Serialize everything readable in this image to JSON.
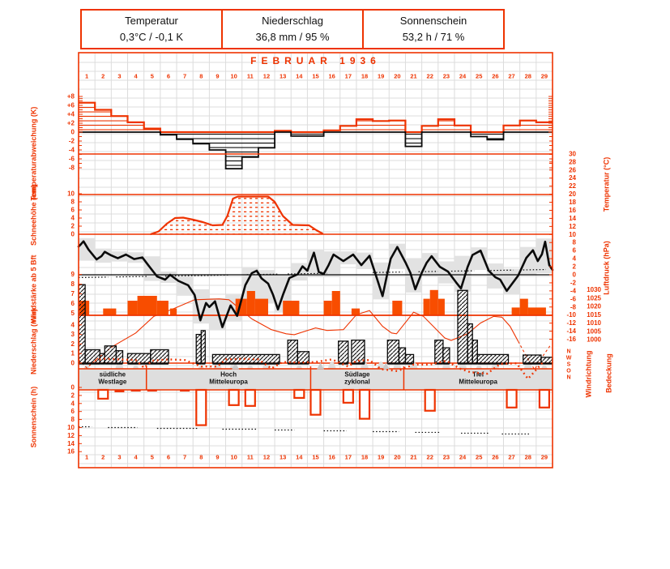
{
  "header": {
    "cells": [
      {
        "title": "Temperatur",
        "value": "0,3°C / -0,1 K"
      },
      {
        "title": "Niederschlag",
        "value": "36,8 mm / 95 %"
      },
      {
        "title": "Sonnenschein",
        "value": "53,2 h / 71 %"
      }
    ]
  },
  "title": "FEBRUAR  1936",
  "days": [
    "1",
    "2",
    "3",
    "4",
    "5",
    "6",
    "7",
    "8",
    "9",
    "10",
    "11",
    "12",
    "13",
    "14",
    "15",
    "16",
    "17",
    "18",
    "19",
    "20",
    "21",
    "22",
    "23",
    "24",
    "25",
    "26",
    "27",
    "28",
    "29"
  ],
  "labels": {
    "left": [
      "Temperaturabweichung (K)",
      "Schneehöhe (cm)",
      "Windstärke ab 5 Bft",
      "Niederschlag (mm)",
      "Sonnenschein (h)"
    ],
    "right": [
      "Temperatur (°C)",
      "Luftdruck (hPa)",
      "Windrichtung",
      "Bedeckung"
    ]
  },
  "ticks": {
    "deviation": [
      "+8",
      "+6",
      "+4",
      "+2",
      "0",
      "-2",
      "-4",
      "-6",
      "-8"
    ],
    "snow": [
      "10",
      "8",
      "6",
      "4",
      "2",
      "0"
    ],
    "wind": [
      "9",
      "8",
      "7",
      "6",
      "5"
    ],
    "precip": [
      "4",
      "3",
      "2",
      "1",
      "0"
    ],
    "sun": [
      "0",
      "2",
      "4",
      "6",
      "8",
      "10",
      "12",
      "14",
      "16"
    ],
    "temp": [
      "30",
      "28",
      "26",
      "24",
      "22",
      "20",
      "18",
      "16",
      "14",
      "12",
      "10",
      "8",
      "6",
      "4",
      "2",
      "0",
      "-2",
      "-4",
      "-6",
      "-8",
      "-10",
      "-12",
      "-14",
      "-16"
    ],
    "pressure": [
      "1030",
      "1025",
      "1020",
      "1015",
      "1010",
      "1005",
      "1000"
    ],
    "wdir": [
      "N",
      "W",
      "S",
      "O",
      "N"
    ]
  },
  "colors": {
    "accent": "#ee3300",
    "solid_bar": "#f84d00",
    "grid": "#dcdcdc",
    "range_gray": "#e2e2e2",
    "band_gray": "#dedede",
    "black": "#0a0a0a"
  },
  "chart_data": {
    "type": [
      "bar",
      "area",
      "line"
    ],
    "title": "FEBRUAR 1936",
    "temperature_deviation_k": {
      "type": "bar",
      "unit": "K",
      "ylim": [
        -8,
        8
      ],
      "daily": [
        6.6,
        5.0,
        3.6,
        2.2,
        0.8,
        -0.6,
        -1.6,
        -2.6,
        -4.0,
        -8.2,
        -5.6,
        -3.5,
        0.3,
        -0.9,
        -0.9,
        0.4,
        1.4,
        2.9,
        2.5,
        2.6,
        -3.2,
        1.4,
        2.9,
        1.5,
        -1.0,
        -1.7,
        1.5,
        2.6,
        2.2
      ]
    },
    "snow_depth_cm": {
      "type": "area",
      "unit": "cm",
      "ylim": [
        0,
        10
      ],
      "points": [
        [
          5.4,
          0
        ],
        [
          5.9,
          0.7
        ],
        [
          6.4,
          2.6
        ],
        [
          6.9,
          4.0
        ],
        [
          7.4,
          4.1
        ],
        [
          8.0,
          3.6
        ],
        [
          8.6,
          3.0
        ],
        [
          9.2,
          2.2
        ],
        [
          9.8,
          2.3
        ],
        [
          10.1,
          4.5
        ],
        [
          10.45,
          8.8
        ],
        [
          10.75,
          9.3
        ],
        [
          12.6,
          9.3
        ],
        [
          13.0,
          8.0
        ],
        [
          13.5,
          4.5
        ],
        [
          14.1,
          2.3
        ],
        [
          15.1,
          2.2
        ],
        [
          15.55,
          1.0
        ],
        [
          15.95,
          0.1
        ]
      ]
    },
    "temperature_c": {
      "type": "line",
      "unit": "°C",
      "ylim": [
        -16,
        30
      ],
      "points": [
        [
          1.0,
          7.0
        ],
        [
          1.15,
          7.6
        ],
        [
          1.3,
          8.3
        ],
        [
          1.6,
          6.3
        ],
        [
          2.1,
          3.8
        ],
        [
          2.4,
          4.6
        ],
        [
          2.6,
          5.7
        ],
        [
          3.0,
          4.8
        ],
        [
          3.4,
          4.1
        ],
        [
          3.9,
          5.0
        ],
        [
          4.4,
          3.9
        ],
        [
          4.9,
          4.3
        ],
        [
          5.3,
          2.2
        ],
        [
          5.8,
          -0.4
        ],
        [
          6.3,
          -1.2
        ],
        [
          6.6,
          0.0
        ],
        [
          7.1,
          -1.5
        ],
        [
          7.7,
          -2.6
        ],
        [
          8.1,
          -5.0
        ],
        [
          8.45,
          -11.3
        ],
        [
          8.8,
          -7.0
        ],
        [
          9.0,
          -8.0
        ],
        [
          9.35,
          -6.6
        ],
        [
          9.8,
          -13.0
        ],
        [
          10.3,
          -7.6
        ],
        [
          10.7,
          -10.2
        ],
        [
          11.2,
          -2.6
        ],
        [
          11.6,
          0.4
        ],
        [
          11.9,
          1.0
        ],
        [
          12.2,
          -0.9
        ],
        [
          12.6,
          -2.2
        ],
        [
          12.9,
          -5.0
        ],
        [
          13.2,
          -8.6
        ],
        [
          13.5,
          -5.0
        ],
        [
          13.9,
          -0.8
        ],
        [
          14.4,
          0.1
        ],
        [
          14.7,
          2.1
        ],
        [
          15.0,
          1.0
        ],
        [
          15.4,
          5.5
        ],
        [
          15.7,
          0.7
        ],
        [
          16.0,
          0.2
        ],
        [
          16.3,
          2.4
        ],
        [
          16.6,
          5.0
        ],
        [
          17.2,
          3.4
        ],
        [
          17.8,
          5.0
        ],
        [
          18.3,
          2.4
        ],
        [
          18.8,
          4.7
        ],
        [
          19.3,
          -1.5
        ],
        [
          19.6,
          -5.3
        ],
        [
          19.9,
          0.5
        ],
        [
          20.1,
          4.0
        ],
        [
          20.5,
          6.9
        ],
        [
          21.0,
          3.1
        ],
        [
          21.3,
          0.5
        ],
        [
          21.6,
          -3.6
        ],
        [
          22.0,
          0.5
        ],
        [
          22.3,
          3.0
        ],
        [
          22.6,
          4.6
        ],
        [
          23.1,
          2.0
        ],
        [
          23.6,
          0.8
        ],
        [
          24.1,
          -1.9
        ],
        [
          24.4,
          -3.4
        ],
        [
          24.8,
          1.9
        ],
        [
          25.1,
          4.9
        ],
        [
          25.6,
          6.0
        ],
        [
          26.1,
          1.0
        ],
        [
          26.5,
          -0.6
        ],
        [
          26.8,
          -1.2
        ],
        [
          27.2,
          -4.0
        ],
        [
          27.9,
          -0.2
        ],
        [
          28.4,
          4.2
        ],
        [
          28.8,
          6.1
        ],
        [
          29.1,
          3.4
        ],
        [
          29.35,
          5.1
        ],
        [
          29.55,
          8.2
        ],
        [
          29.8,
          2.4
        ],
        [
          30.0,
          1.2
        ]
      ]
    },
    "temperature_mean_ref": {
      "type": "dotted-segments",
      "start_value": -0.7,
      "slope_per_day": 0.07,
      "segments": [
        [
          1.0,
          2.8
        ],
        [
          3.3,
          5.2
        ],
        [
          6.3,
          10.2
        ],
        [
          11.3,
          13.2
        ],
        [
          13.8,
          16.2
        ],
        [
          19.0,
          20.8
        ],
        [
          21.8,
          23.0
        ],
        [
          23.8,
          25.2
        ],
        [
          26.0,
          27.6
        ],
        [
          28.2,
          29.6
        ]
      ]
    },
    "pressure_hpa": {
      "type": "line",
      "unit": "hPa",
      "ylim": [
        1000,
        1030
      ],
      "dash_head": [
        [
          1.0,
          988
        ],
        [
          1.5,
          983
        ],
        [
          2.2,
          989
        ],
        [
          3.1,
          996
        ]
      ],
      "solid": [
        [
          3.1,
          996
        ],
        [
          4.5,
          1004
        ],
        [
          5.6,
          1014
        ],
        [
          6.9,
          1019
        ],
        [
          8.1,
          1024
        ],
        [
          9.6,
          1024.5
        ],
        [
          10.2,
          1024
        ],
        [
          11.6,
          1012.5
        ],
        [
          12.8,
          1006
        ],
        [
          13.7,
          1003.5
        ],
        [
          14.2,
          1003
        ],
        [
          15.5,
          1007
        ],
        [
          16.2,
          1005.5
        ],
        [
          17.2,
          1006
        ],
        [
          18.0,
          1015
        ],
        [
          18.8,
          1017.5
        ],
        [
          19.6,
          1008
        ],
        [
          20.15,
          1004
        ],
        [
          20.45,
          1003.5
        ],
        [
          21.5,
          1016.5
        ],
        [
          22.1,
          1014
        ],
        [
          23.4,
          1001
        ],
        [
          23.8,
          999.5
        ],
        [
          24.8,
          1003.5
        ],
        [
          25.6,
          1010
        ],
        [
          26.4,
          1014
        ],
        [
          26.9,
          1013.5
        ],
        [
          27.4,
          1008
        ],
        [
          27.9,
          999
        ]
      ],
      "dash_tail": [
        [
          27.9,
          999
        ],
        [
          28.4,
          990
        ],
        [
          28.9,
          982
        ],
        [
          29.4,
          990
        ],
        [
          29.9,
          997
        ]
      ]
    },
    "wind_bft": {
      "type": "bar",
      "unit": "Bft",
      "segments": [
        [
          1.05,
          1.65,
          6.3
        ],
        [
          2.5,
          3.3,
          5.5
        ],
        [
          4.0,
          4.6,
          6.3
        ],
        [
          4.6,
          5.8,
          6.8
        ],
        [
          5.8,
          6.5,
          6.3
        ],
        [
          6.6,
          7.0,
          5.5
        ],
        [
          10.6,
          11.3,
          6.5
        ],
        [
          11.3,
          11.8,
          7.3
        ],
        [
          11.8,
          12.6,
          6.5
        ],
        [
          13.5,
          14.5,
          6.3
        ],
        [
          16.0,
          16.5,
          6.3
        ],
        [
          16.5,
          17.0,
          7.3
        ],
        [
          17.7,
          18.2,
          5.5
        ],
        [
          20.2,
          20.8,
          6.3
        ],
        [
          22.1,
          22.5,
          6.5
        ],
        [
          22.5,
          23.0,
          7.4
        ],
        [
          23.0,
          23.4,
          6.5
        ],
        [
          27.5,
          28.0,
          5.6
        ],
        [
          28.0,
          28.5,
          6.5
        ],
        [
          28.5,
          29.6,
          5.6
        ]
      ]
    },
    "precipitation_mm": {
      "type": "bar",
      "unit": "mm",
      "segments": [
        [
          1.0,
          1.4,
          8.2
        ],
        [
          1.4,
          2.3,
          1.4
        ],
        [
          2.3,
          2.6,
          1.0
        ],
        [
          2.6,
          3.3,
          1.8
        ],
        [
          3.3,
          3.7,
          1.3
        ],
        [
          4.0,
          5.4,
          1.0
        ],
        [
          5.4,
          6.5,
          1.4
        ],
        [
          8.2,
          8.5,
          3.0
        ],
        [
          8.5,
          8.75,
          3.4
        ],
        [
          9.2,
          13.3,
          0.9
        ],
        [
          13.8,
          14.4,
          2.4
        ],
        [
          14.4,
          15.1,
          1.2
        ],
        [
          16.9,
          17.5,
          2.3
        ],
        [
          17.7,
          18.5,
          2.4
        ],
        [
          19.9,
          20.6,
          2.4
        ],
        [
          20.6,
          21.0,
          1.6
        ],
        [
          21.0,
          21.5,
          0.9
        ],
        [
          22.8,
          23.3,
          2.4
        ],
        [
          23.3,
          23.7,
          1.6
        ],
        [
          24.2,
          24.8,
          7.6
        ],
        [
          24.8,
          25.1,
          4.1
        ],
        [
          25.1,
          25.4,
          2.4
        ],
        [
          25.4,
          27.3,
          0.9
        ],
        [
          28.2,
          29.3,
          0.85
        ],
        [
          29.3,
          30.0,
          0.6
        ]
      ]
    },
    "sunshine_h": {
      "type": "bar",
      "unit": "h",
      "ylim": [
        0,
        16
      ],
      "daily": [
        0,
        2.2,
        0.6,
        0.3,
        0.3,
        0,
        0.4,
        8.8,
        0,
        3.8,
        4.0,
        0,
        0,
        2.0,
        6.2,
        0,
        3.2,
        7.2,
        0,
        0,
        0,
        5.2,
        0,
        0,
        0,
        0,
        4.4,
        0,
        4.4
      ]
    },
    "sunshine_possible_h": {
      "type": "dotted-segments",
      "segments": [
        [
          1.0,
          1.8,
          9.4
        ],
        [
          2.8,
          4.6,
          9.6
        ],
        [
          5.8,
          8.3,
          9.8
        ],
        [
          9.8,
          11.9,
          10.0
        ],
        [
          13.0,
          14.2,
          10.2
        ],
        [
          16.0,
          17.4,
          10.4
        ],
        [
          19.0,
          20.6,
          10.6
        ],
        [
          21.6,
          23.1,
          10.8
        ],
        [
          24.4,
          26.1,
          11.0
        ],
        [
          26.9,
          28.6,
          11.2
        ]
      ]
    },
    "wind_direction": {
      "type": "dotted-line",
      "scale": [
        "N",
        "W",
        "S",
        "O",
        "N"
      ],
      "points": [
        [
          2.0,
          1.5
        ],
        [
          2.5,
          1.2
        ],
        [
          3.5,
          1.3
        ],
        [
          4.5,
          1.4
        ],
        [
          5.0,
          2.6
        ],
        [
          5.5,
          1.5
        ],
        [
          6.5,
          1.3
        ],
        [
          7.5,
          1.4
        ],
        [
          8.5,
          2.4
        ],
        [
          9.5,
          2.4
        ],
        [
          10.0,
          1.3
        ],
        [
          11.0,
          1.2
        ],
        [
          12.0,
          1.3
        ],
        [
          12.8,
          2.7
        ],
        [
          13.5,
          1.7
        ],
        [
          14.5,
          1.8
        ],
        [
          15.5,
          1.7
        ],
        [
          16.5,
          1.3
        ],
        [
          17.5,
          2.4
        ],
        [
          18.0,
          1.5
        ],
        [
          18.8,
          1.4
        ],
        [
          19.5,
          2.8
        ],
        [
          20.5,
          3.1
        ],
        [
          21.5,
          2.1
        ],
        [
          22.5,
          2.1
        ],
        [
          23.5,
          1.5
        ],
        [
          24.3,
          2.7
        ],
        [
          25.0,
          3.3
        ],
        [
          26.0,
          3.5
        ],
        [
          26.8,
          2.0
        ],
        [
          27.8,
          1.9
        ],
        [
          28.5,
          4.3
        ],
        [
          29.0,
          2.9
        ],
        [
          29.5,
          1.5
        ]
      ]
    },
    "cloud_cover_octas": {
      "type": "area",
      "daily": [
        7,
        3,
        8,
        7,
        6,
        5,
        4,
        7,
        8,
        8,
        7,
        8,
        5,
        7,
        4,
        8,
        6,
        8,
        8,
        8,
        8,
        5,
        8,
        8,
        7,
        8,
        4,
        8,
        7
      ]
    },
    "circulation_periods": [
      {
        "lines": [
          "südliche",
          "Westlage"
        ],
        "from": 1.0,
        "to": 5.15
      },
      {
        "lines": [
          "Hoch",
          "Mitteleuropa"
        ],
        "from": 5.15,
        "to": 15.2
      },
      {
        "lines": [
          "Südlage",
          "zyklonal"
        ],
        "from": 15.2,
        "to": 20.9
      },
      {
        "lines": [
          "Tief",
          "Mitteleuropa"
        ],
        "from": 20.9,
        "to": 30.0
      }
    ],
    "period_markers_day": [
      10.6,
      15.8,
      19.8
    ]
  }
}
